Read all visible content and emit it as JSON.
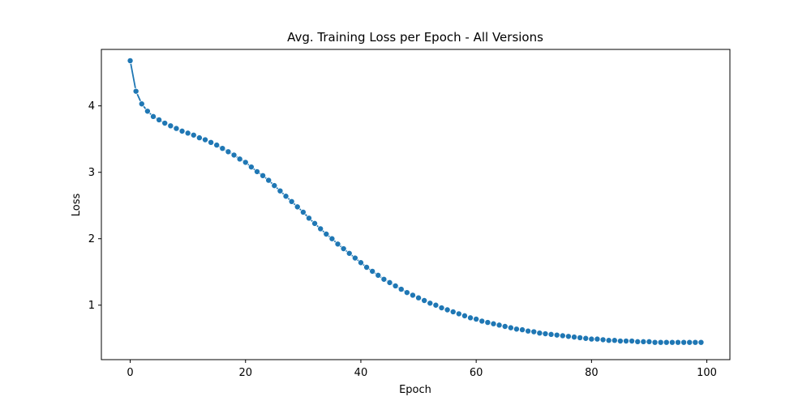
{
  "chart_data": {
    "type": "line",
    "title": "Avg. Training Loss per Epoch - All Versions",
    "xlabel": "Epoch",
    "ylabel": "Loss",
    "xlim": [
      -5,
      104
    ],
    "ylim": [
      0.18,
      4.85
    ],
    "xticks": [
      0,
      20,
      40,
      60,
      80,
      100
    ],
    "yticks": [
      1,
      2,
      3,
      4
    ],
    "grid": false,
    "legend": "none",
    "color": "#1f77b4",
    "marker": "circle",
    "series": [
      {
        "x": [
          0,
          1,
          2,
          3,
          4,
          5,
          6,
          7,
          8,
          9,
          10,
          11,
          12,
          13,
          14,
          15,
          16,
          17,
          18,
          19,
          20,
          21,
          22,
          23,
          24,
          25,
          26,
          27,
          28,
          29,
          30,
          31,
          32,
          33,
          34,
          35,
          36,
          37,
          38,
          39,
          40,
          41,
          42,
          43,
          44,
          45,
          46,
          47,
          48,
          49,
          50,
          51,
          52,
          53,
          54,
          55,
          56,
          57,
          58,
          59,
          60,
          61,
          62,
          63,
          64,
          65,
          66,
          67,
          68,
          69,
          70,
          71,
          72,
          73,
          74,
          75,
          76,
          77,
          78,
          79,
          80,
          81,
          82,
          83,
          84,
          85,
          86,
          87,
          88,
          89,
          90,
          91,
          92,
          93,
          94,
          95,
          96,
          97,
          98,
          99
        ],
        "y": [
          4.68,
          4.22,
          4.03,
          3.92,
          3.84,
          3.79,
          3.74,
          3.7,
          3.66,
          3.62,
          3.59,
          3.56,
          3.52,
          3.49,
          3.45,
          3.41,
          3.36,
          3.31,
          3.26,
          3.2,
          3.15,
          3.08,
          3.01,
          2.95,
          2.88,
          2.8,
          2.72,
          2.64,
          2.56,
          2.48,
          2.4,
          2.31,
          2.23,
          2.15,
          2.07,
          2.0,
          1.92,
          1.85,
          1.78,
          1.71,
          1.64,
          1.57,
          1.51,
          1.45,
          1.39,
          1.34,
          1.29,
          1.24,
          1.19,
          1.15,
          1.11,
          1.07,
          1.03,
          1.0,
          0.96,
          0.93,
          0.9,
          0.87,
          0.84,
          0.81,
          0.79,
          0.76,
          0.74,
          0.72,
          0.7,
          0.68,
          0.66,
          0.64,
          0.63,
          0.61,
          0.6,
          0.58,
          0.57,
          0.56,
          0.55,
          0.54,
          0.53,
          0.52,
          0.51,
          0.5,
          0.49,
          0.49,
          0.48,
          0.47,
          0.47,
          0.46,
          0.46,
          0.46,
          0.45,
          0.45,
          0.45,
          0.44,
          0.44,
          0.44,
          0.44,
          0.44,
          0.44,
          0.44,
          0.44,
          0.44
        ]
      }
    ]
  }
}
